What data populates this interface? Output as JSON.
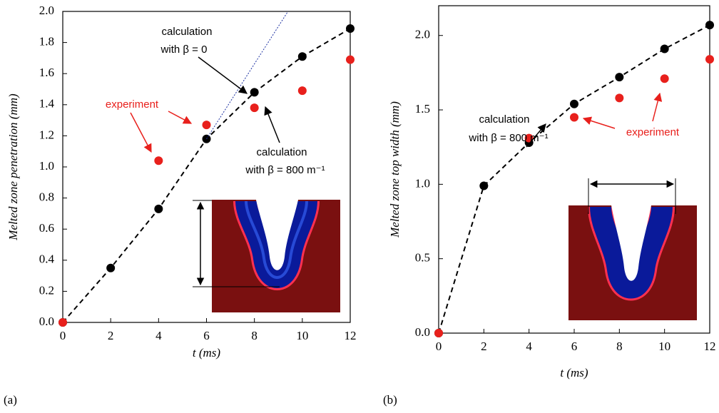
{
  "chart_data": [
    {
      "type": "scatter",
      "panel_label": "(a)",
      "xlabel": "t (ms)",
      "ylabel": "Melted zone penetration (mm)",
      "xlim": [
        0,
        12
      ],
      "ylim": [
        0,
        2
      ],
      "xticks": [
        0,
        2,
        4,
        6,
        8,
        10,
        12
      ],
      "yticks": [
        {
          "value": 0,
          "label": "0.0"
        },
        0.2,
        0.4,
        0.6,
        0.8,
        {
          "value": 1,
          "label": "1.0"
        },
        1.2,
        1.4,
        1.6,
        1.8,
        {
          "value": 2,
          "label": "2.0"
        }
      ],
      "series": [
        {
          "color": "#000000",
          "line": "dashed",
          "marker": true,
          "x": [
            0,
            2,
            4,
            6,
            8,
            10,
            12
          ],
          "values": [
            0,
            0.35,
            0.73,
            1.18,
            1.48,
            1.71,
            1.89
          ]
        },
        {
          "color": "#1a2fa0",
          "line": "dotted",
          "marker": false,
          "x": [
            6,
            9.4
          ],
          "values": [
            1.18,
            2.0
          ]
        },
        {
          "color": "#e8201c",
          "line": null,
          "marker": true,
          "x": [
            0,
            4,
            6,
            8,
            10,
            12
          ],
          "values": [
            0,
            1.04,
            1.27,
            1.38,
            1.49,
            1.69
          ]
        }
      ],
      "annotations": [
        {
          "lines": [
            "calculation",
            "with β = 0"
          ],
          "color": "#000000"
        },
        {
          "lines": [
            "experiment"
          ],
          "color": "#e8201c"
        },
        {
          "lines": [
            "calculation",
            "with β = 800 m⁻¹"
          ],
          "color": "#000000"
        }
      ]
    },
    {
      "type": "scatter",
      "panel_label": "(b)",
      "xlabel": "t (ms)",
      "ylabel": "Melted zone top width (mm)",
      "xlim": [
        0,
        12
      ],
      "ylim": [
        0,
        2.2
      ],
      "xticks": [
        0,
        2,
        4,
        6,
        8,
        10,
        12
      ],
      "yticks": [
        {
          "value": 0,
          "label": "0.0"
        },
        0.5,
        {
          "value": 1,
          "label": "1.0"
        },
        1.5,
        {
          "value": 2,
          "label": "2.0"
        }
      ],
      "series": [
        {
          "color": "#000000",
          "line": "dashed",
          "marker": true,
          "x": [
            0,
            2,
            4,
            6,
            8,
            10,
            12
          ],
          "values": [
            0,
            0.99,
            1.28,
            1.54,
            1.72,
            1.91,
            2.07
          ]
        },
        {
          "color": "#e8201c",
          "line": null,
          "marker": true,
          "x": [
            0,
            4,
            6,
            8,
            10,
            12
          ],
          "values": [
            0,
            1.31,
            1.45,
            1.58,
            1.71,
            1.84
          ]
        }
      ],
      "annotations": [
        {
          "lines": [
            "calculation",
            "with β = 800 m⁻¹"
          ],
          "color": "#000000"
        },
        {
          "lines": [
            "experiment"
          ],
          "color": "#e8201c"
        }
      ]
    }
  ]
}
